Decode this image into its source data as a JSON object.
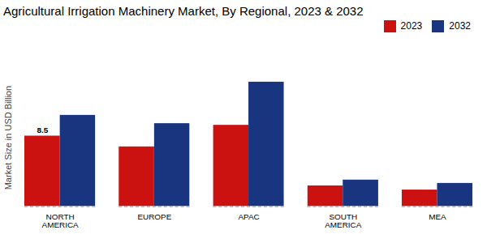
{
  "chart_data": {
    "type": "bar",
    "title": "Agricultural Irrigation Machinery Market, By Regional, 2023 & 2032",
    "ylabel": "Market Size in USD Billion",
    "categories": [
      "NORTH\nAMERICA",
      "EUROPE",
      "APAC",
      "SOUTH\nAMERICA",
      "MEA"
    ],
    "series": [
      {
        "name": "2023",
        "color": "#cc1111",
        "values": [
          8.5,
          7.2,
          9.8,
          2.5,
          2.0
        ]
      },
      {
        "name": "2032",
        "color": "#1a3580",
        "values": [
          11.0,
          10.0,
          15.0,
          3.2,
          2.8
        ]
      }
    ],
    "annotations": [
      {
        "text": "8.5",
        "x": "NORTH\nAMERICA",
        "series": "2023",
        "y": 8.5
      }
    ],
    "ylim": [
      0,
      19
    ],
    "grid": false,
    "legend": "upper right",
    "tick_labels": "x"
  }
}
